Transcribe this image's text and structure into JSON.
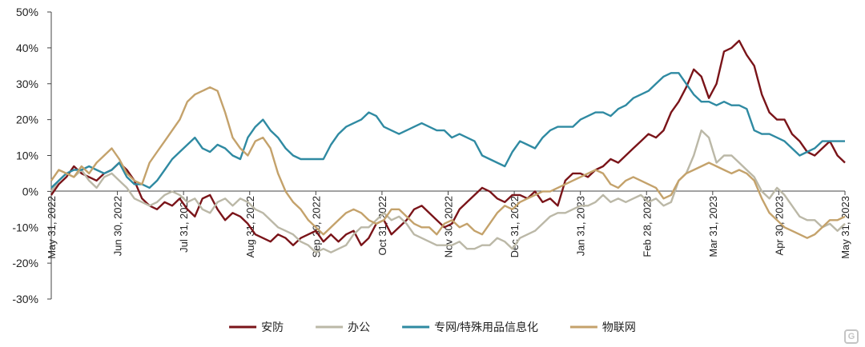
{
  "chart_data": {
    "type": "line",
    "y_ticks": [
      "50%",
      "40%",
      "30%",
      "20%",
      "10%",
      "0%",
      "-10%",
      "-20%",
      "-30%"
    ],
    "ylim": [
      -30,
      50
    ],
    "x_ticks": [
      "May 31, 2022",
      "Jun 30, 2022",
      "Jul 31, 2022",
      "Aug 31, 2022",
      "Sep 30, 2022",
      "Oct 31, 2022",
      "Nov 30, 2022",
      "Dec 31, 2022",
      "Jan 31, 2023",
      "Feb 28, 2023",
      "Mar 31, 2023",
      "Apr 30, 2023",
      "May 31, 2023"
    ],
    "grid": false,
    "legend_position": "bottom",
    "series": [
      {
        "name": "安防",
        "color": "#7a1419",
        "values": [
          -1,
          2,
          4,
          7,
          5,
          4,
          3,
          5,
          6,
          8,
          6,
          3,
          -2,
          -4,
          -5,
          -3,
          -4,
          -2,
          -5,
          -7,
          -2,
          -1,
          -5,
          -8,
          -6,
          -7,
          -9,
          -12,
          -13,
          -14,
          -12,
          -13,
          -15,
          -13,
          -12,
          -11,
          -14,
          -12,
          -14,
          -12,
          -11,
          -15,
          -13,
          -9,
          -8,
          -12,
          -10,
          -8,
          -5,
          -4,
          -6,
          -8,
          -10,
          -9,
          -5,
          -3,
          -1,
          1,
          0,
          -2,
          -3,
          -1,
          -1,
          -2,
          0,
          -3,
          -2,
          -4,
          3,
          5,
          5,
          4,
          6,
          7,
          9,
          8,
          10,
          12,
          14,
          16,
          15,
          17,
          22,
          25,
          29,
          34,
          32,
          26,
          30,
          39,
          40,
          42,
          38,
          35,
          27,
          22,
          20,
          20,
          16,
          14,
          11,
          10,
          12,
          14,
          10,
          8
        ]
      },
      {
        "name": "办公",
        "color": "#bbb8a7",
        "values": [
          0,
          3,
          5,
          4,
          6,
          3,
          1,
          4,
          5,
          3,
          1,
          -2,
          -3,
          -4,
          -3,
          -1,
          0,
          -1,
          -3,
          -2,
          -5,
          -6,
          -3,
          -2,
          -4,
          -2,
          -3,
          -5,
          -6,
          -8,
          -10,
          -11,
          -12,
          -14,
          -15,
          -17,
          -16,
          -17,
          -16,
          -15,
          -12,
          -10,
          -10,
          -8,
          -6,
          -8,
          -7,
          -9,
          -12,
          -13,
          -14,
          -15,
          -15,
          -15,
          -14,
          -16,
          -16,
          -15,
          -15,
          -13,
          -14,
          -16,
          -13,
          -12,
          -11,
          -9,
          -7,
          -6,
          -6,
          -5,
          -4,
          -4,
          -3,
          -1,
          -3,
          -2,
          -3,
          -2,
          -1,
          -3,
          -2,
          -4,
          -3,
          3,
          5,
          10,
          17,
          15,
          8,
          10,
          10,
          8,
          6,
          4,
          0,
          -2,
          1,
          -1,
          -4,
          -7,
          -8,
          -8,
          -10,
          -9,
          -11,
          -9
        ]
      },
      {
        "name": "专网/特殊用品信息化",
        "color": "#2f8aa2",
        "values": [
          1,
          3,
          5,
          6,
          6,
          7,
          6,
          5,
          6,
          8,
          4,
          2,
          2,
          1,
          3,
          6,
          9,
          11,
          13,
          15,
          12,
          11,
          13,
          12,
          10,
          9,
          15,
          18,
          20,
          17,
          15,
          12,
          10,
          9,
          9,
          9,
          9,
          13,
          16,
          18,
          19,
          20,
          22,
          21,
          18,
          17,
          16,
          17,
          18,
          19,
          18,
          17,
          17,
          15,
          16,
          15,
          14,
          10,
          9,
          8,
          7,
          11,
          14,
          13,
          12,
          15,
          17,
          18,
          18,
          18,
          20,
          21,
          22,
          22,
          21,
          23,
          24,
          26,
          27,
          28,
          30,
          32,
          33,
          33,
          30,
          27,
          25,
          25,
          24,
          25,
          24,
          24,
          23,
          17,
          16,
          16,
          15,
          14,
          12,
          10,
          11,
          12,
          14,
          14,
          14,
          14
        ]
      },
      {
        "name": "物联网",
        "color": "#c4a26b",
        "values": [
          3,
          6,
          5,
          4,
          7,
          5,
          8,
          10,
          12,
          9,
          5,
          3,
          2,
          8,
          11,
          14,
          17,
          20,
          25,
          27,
          28,
          29,
          28,
          22,
          15,
          12,
          10,
          14,
          15,
          12,
          5,
          0,
          -3,
          -5,
          -8,
          -10,
          -12,
          -10,
          -8,
          -6,
          -5,
          -6,
          -8,
          -9,
          -8,
          -5,
          -5,
          -7,
          -9,
          -10,
          -10,
          -12,
          -9,
          -8,
          -10,
          -9,
          -11,
          -12,
          -9,
          -6,
          -4,
          -5,
          -3,
          -2,
          -1,
          0,
          0,
          1,
          2,
          3,
          4,
          5,
          6,
          5,
          2,
          1,
          3,
          4,
          3,
          2,
          1,
          -2,
          -1,
          3,
          5,
          6,
          7,
          8,
          7,
          6,
          5,
          6,
          5,
          3,
          -2,
          -6,
          -8,
          -10,
          -11,
          -12,
          -13,
          -12,
          -10,
          -8,
          -8,
          -7
        ]
      }
    ]
  }
}
